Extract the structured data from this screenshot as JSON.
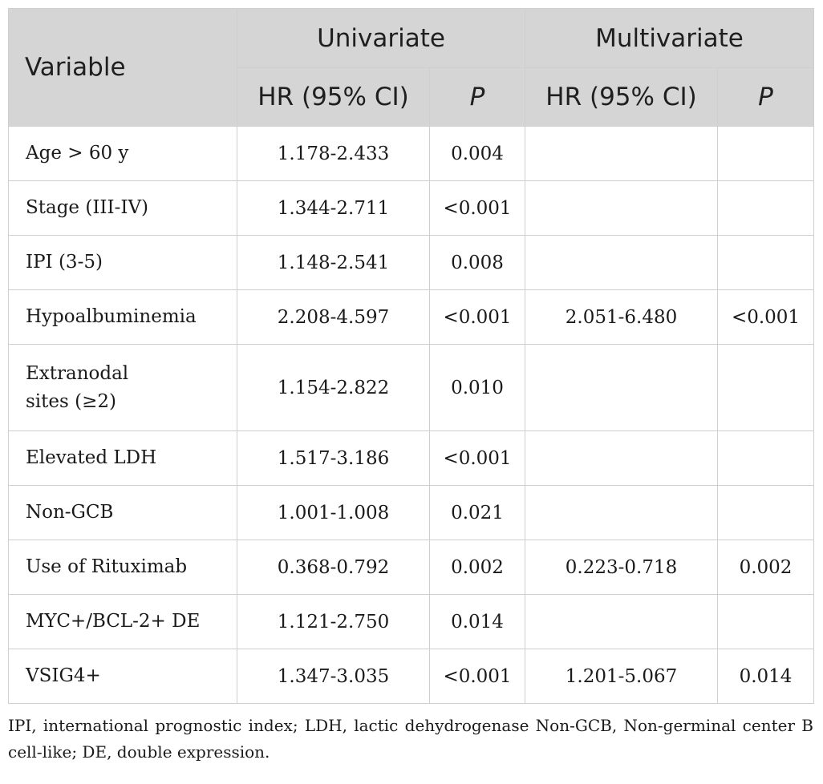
{
  "header": {
    "variable": "Variable",
    "univariate": "Univariate",
    "multivariate": "Multivariate",
    "hr_label": "HR (95% CI)",
    "p_label": "P"
  },
  "rows": [
    {
      "variable": "Age > 60 y",
      "uni_hr": "1.178-2.433",
      "uni_p": "0.004",
      "multi_hr": "",
      "multi_p": ""
    },
    {
      "variable": "Stage (III-IV)",
      "uni_hr": "1.344-2.711",
      "uni_p": "<0.001",
      "multi_hr": "",
      "multi_p": ""
    },
    {
      "variable": "IPI (3-5)",
      "uni_hr": "1.148-2.541",
      "uni_p": "0.008",
      "multi_hr": "",
      "multi_p": ""
    },
    {
      "variable": "Hypoalbuminemia",
      "uni_hr": "2.208-4.597",
      "uni_p": "<0.001",
      "multi_hr": "2.051-6.480",
      "multi_p": "<0.001"
    },
    {
      "variable_line1": "Extranodal",
      "variable_line2": "sites (≥2)",
      "uni_hr": "1.154-2.822",
      "uni_p": "0.010",
      "multi_hr": "",
      "multi_p": ""
    },
    {
      "variable": "Elevated LDH",
      "uni_hr": "1.517-3.186",
      "uni_p": "<0.001",
      "multi_hr": "",
      "multi_p": ""
    },
    {
      "variable": "Non-GCB",
      "uni_hr": "1.001-1.008",
      "uni_p": "0.021",
      "multi_hr": "",
      "multi_p": ""
    },
    {
      "variable": "Use of Rituximab",
      "uni_hr": "0.368-0.792",
      "uni_p": "0.002",
      "multi_hr": "0.223-0.718",
      "multi_p": "0.002"
    },
    {
      "variable": "MYC+/BCL-2+ DE",
      "uni_hr": "1.121-2.750",
      "uni_p": "0.014",
      "multi_hr": "",
      "multi_p": ""
    },
    {
      "variable": "VSIG4+",
      "uni_hr": "1.347-3.035",
      "uni_p": "<0.001",
      "multi_hr": "1.201-5.067",
      "multi_p": "0.014"
    }
  ],
  "footnote": "IPI, international prognostic index; LDH, lactic dehydrogenase Non-GCB, Non-germinal center B cell-like; DE, double expression."
}
